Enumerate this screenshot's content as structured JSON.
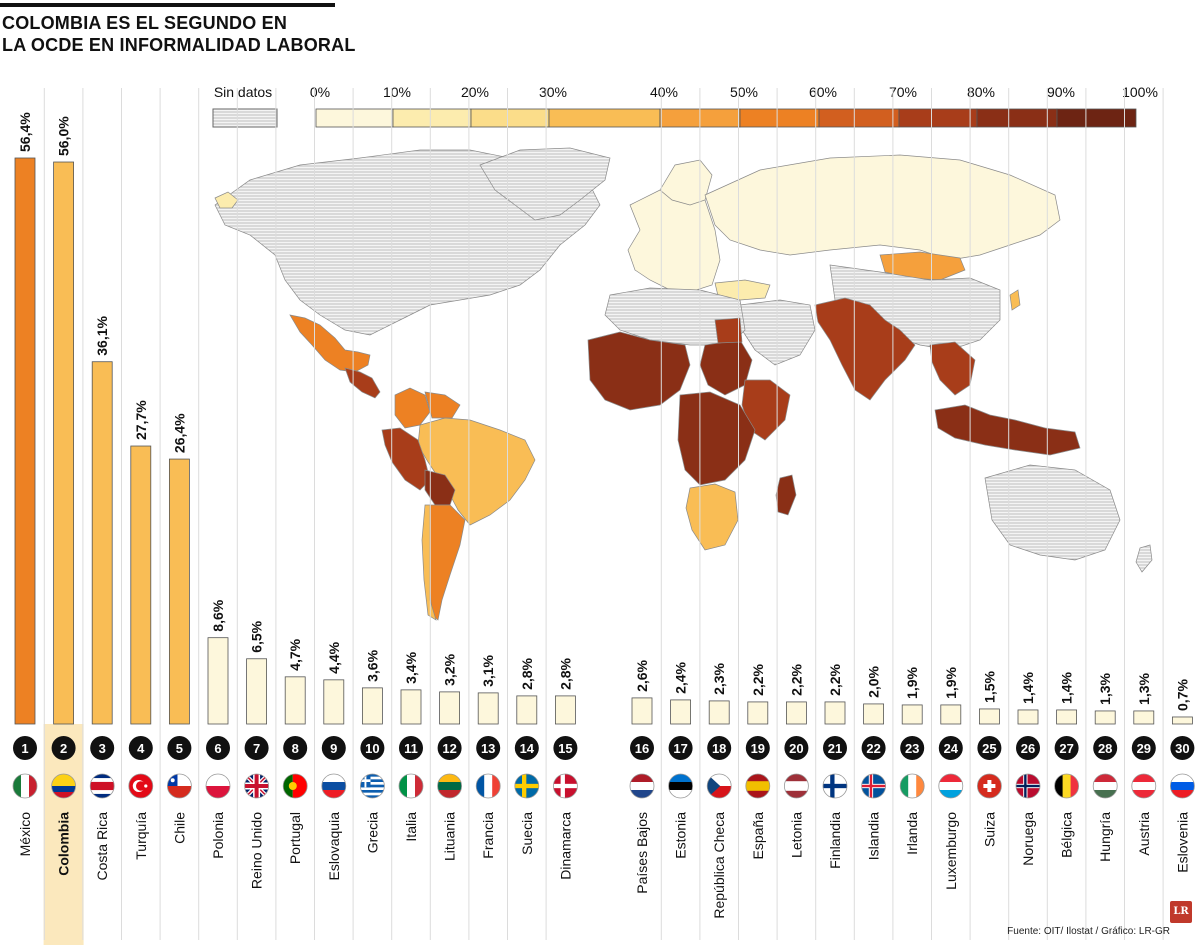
{
  "title": {
    "line1": "COLOMBIA ES EL SEGUNDO EN",
    "line2": "LA OCDE EN INFORMALIDAD LABORAL"
  },
  "legend": {
    "no_data_label": "Sin datos",
    "tick_labels": [
      "0%",
      "10%",
      "20%",
      "30%",
      "40%",
      "50%",
      "60%",
      "70%",
      "80%",
      "90%",
      "100%"
    ],
    "colors": [
      "#fdf7dc",
      "#fcecae",
      "#fbdd8a",
      "#f9bd55",
      "#f5a03c",
      "#ed8123",
      "#d25f1f",
      "#a83d1a",
      "#8a2f16",
      "#6d2413"
    ],
    "no_data_color": "#ffffff"
  },
  "colors": {
    "highlight_background": "#fbe8bd",
    "bar_mexico": "#ed8123",
    "bar_mid": "#f9bd55",
    "bar_low": "#fdf7dc",
    "bar_stroke": "#555555",
    "map_land_no_data": "#f2f2f2",
    "map_border": "#8a8a8a"
  },
  "chart_data": {
    "type": "bar",
    "ylim": [
      0,
      56.4
    ],
    "categories": [
      "México",
      "Colombia",
      "Costa Rica",
      "Turquía",
      "Chile",
      "Polonia",
      "Reino Unido",
      "Portugal",
      "Eslovaquia",
      "Grecia",
      "Italia",
      "Lituania",
      "Francia",
      "Suecia",
      "Dinamarca",
      "Países Bajos",
      "Estonia",
      "República Checa",
      "España",
      "Letonia",
      "Finlandia",
      "Islandia",
      "Irlanda",
      "Luxemburgo",
      "Suiza",
      "Noruega",
      "Bélgica",
      "Hungría",
      "Austria",
      "Eslovenia"
    ],
    "values": [
      56.4,
      56.0,
      36.1,
      27.7,
      26.4,
      8.6,
      6.5,
      4.7,
      4.4,
      3.6,
      3.4,
      3.2,
      3.1,
      2.8,
      2.8,
      2.6,
      2.4,
      2.3,
      2.2,
      2.2,
      2.2,
      2.0,
      1.9,
      1.9,
      1.5,
      1.4,
      1.4,
      1.3,
      1.3,
      0.7
    ],
    "value_labels": [
      "56,4%",
      "56,0%",
      "36,1%",
      "27,7%",
      "26,4%",
      "8,6%",
      "6,5%",
      "4,7%",
      "4,4%",
      "3,6%",
      "3,4%",
      "3,2%",
      "3,1%",
      "2,8%",
      "2,8%",
      "2,6%",
      "2,4%",
      "2,3%",
      "2,2%",
      "2,2%",
      "2,2%",
      "2,0%",
      "1,9%",
      "1,9%",
      "1,5%",
      "1,4%",
      "1,4%",
      "1,3%",
      "1,3%",
      "0,7%"
    ],
    "ranks": [
      "1",
      "2",
      "3",
      "4",
      "5",
      "6",
      "7",
      "8",
      "9",
      "10",
      "11",
      "12",
      "13",
      "14",
      "15",
      "16",
      "17",
      "18",
      "19",
      "20",
      "21",
      "22",
      "23",
      "24",
      "25",
      "26",
      "27",
      "28",
      "29",
      "30"
    ],
    "highlight": "Colombia",
    "flag_icons": [
      "flag-mexico-icon",
      "flag-colombia-icon",
      "flag-costa-rica-icon",
      "flag-turkey-icon",
      "flag-chile-icon",
      "flag-poland-icon",
      "flag-uk-icon",
      "flag-portugal-icon",
      "flag-slovakia-icon",
      "flag-greece-icon",
      "flag-italy-icon",
      "flag-lithuania-icon",
      "flag-france-icon",
      "flag-sweden-icon",
      "flag-denmark-icon",
      "flag-netherlands-icon",
      "flag-estonia-icon",
      "flag-czech-icon",
      "flag-spain-icon",
      "flag-latvia-icon",
      "flag-finland-icon",
      "flag-iceland-icon",
      "flag-ireland-icon",
      "flag-luxembourg-icon",
      "flag-switzerland-icon",
      "flag-norway-icon",
      "flag-belgium-icon",
      "flag-hungary-icon",
      "flag-austria-icon",
      "flag-slovenia-icon"
    ]
  },
  "source": "Fuente: OIT/ Ilostat / Gráfico: LR-GR",
  "logo_text": "LR"
}
